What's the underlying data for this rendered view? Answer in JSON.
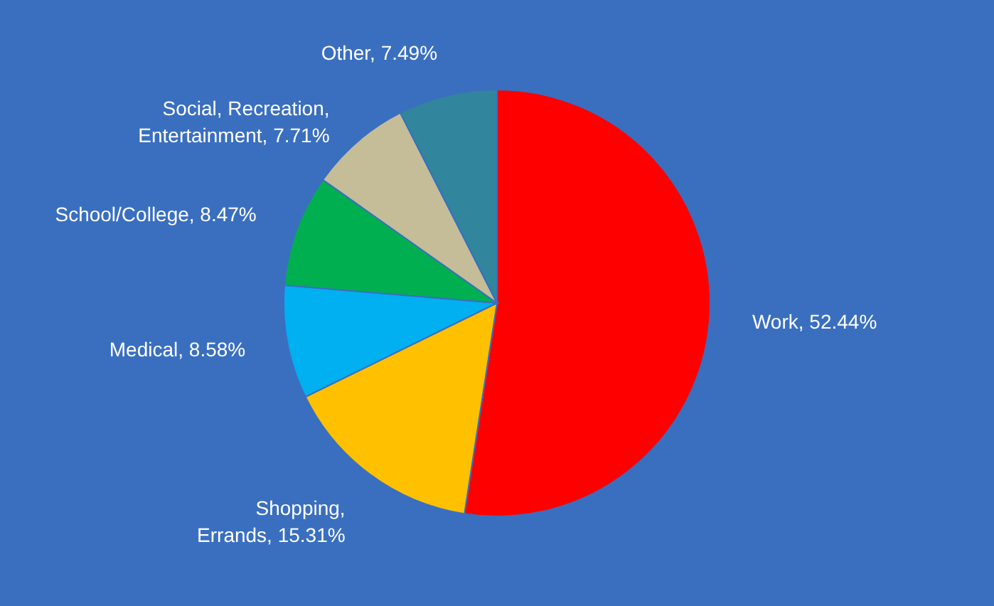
{
  "chart_data": {
    "type": "pie",
    "categories": [
      "Work",
      "Shopping, Errands",
      "Medical",
      "School/College",
      "Social, Recreation, Entertainment",
      "Other"
    ],
    "values": [
      52.44,
      15.31,
      8.58,
      8.47,
      7.71,
      7.49
    ],
    "colors": [
      "#ff0000",
      "#ffc000",
      "#00b0f0",
      "#00b050",
      "#c4bd97",
      "#31859c"
    ],
    "value_labels": [
      "52.44%",
      "15.31%",
      "8.58%",
      "8.47%",
      "7.71%",
      "7.49%"
    ],
    "legend": false
  }
}
